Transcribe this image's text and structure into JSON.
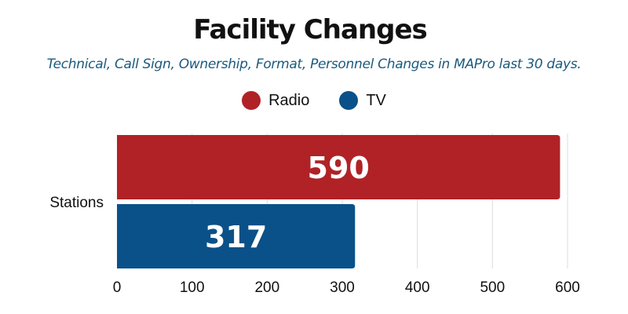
{
  "chart_data": {
    "type": "bar",
    "orientation": "horizontal",
    "title": "Facility Changes",
    "subtitle": "Technical, Call Sign, Ownership, Format, Personnel Changes in MAPro last 30 days.",
    "categories": [
      "Stations"
    ],
    "series": [
      {
        "name": "Radio",
        "values": [
          590
        ],
        "color": "#b02226"
      },
      {
        "name": "TV",
        "values": [
          317
        ],
        "color": "#0a5189"
      }
    ],
    "xlim": [
      0,
      600
    ],
    "xticks": [
      "0",
      "100",
      "200",
      "300",
      "400",
      "500",
      "600"
    ],
    "data_labels": [
      "590",
      "317"
    ],
    "grid": true,
    "legend_position": "top-center"
  },
  "colors": {
    "title": "#111111",
    "subtitle": "#1b5a7e",
    "grid": "#dddddd",
    "label": "#ffffff"
  }
}
